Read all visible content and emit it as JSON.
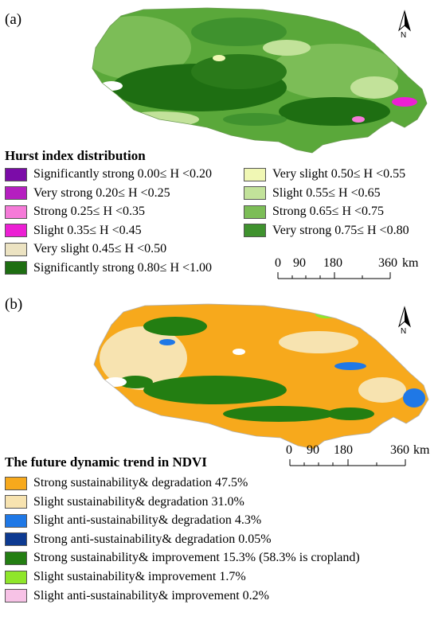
{
  "panel_a": {
    "label": "(a)",
    "north": "N",
    "legend_title": "Hurst index distribution",
    "legend_left": [
      {
        "label": "Significantly strong 0.00≤ H <0.20",
        "color": "#7b0ca8"
      },
      {
        "label": "Very strong 0.20≤ H <0.25",
        "color": "#b51fc0"
      },
      {
        "label": "Strong 0.25≤ H <0.35",
        "color": "#f57ad8"
      },
      {
        "label": "Slight 0.35≤ H <0.45",
        "color": "#ec1fd4"
      },
      {
        "label": "Very slight 0.45≤ H <0.50",
        "color": "#ece3c2"
      },
      {
        "label": "Significantly strong 0.80≤ H <1.00",
        "color": "#1e6e12"
      }
    ],
    "legend_right": [
      {
        "label": "Very slight 0.50≤ H <0.55",
        "color": "#f0f7b4"
      },
      {
        "label": "Slight 0.55≤ H <0.65",
        "color": "#c2e29a"
      },
      {
        "label": "Strong 0.65≤ H <0.75",
        "color": "#7cbd57"
      },
      {
        "label": "Very strong 0.75≤ H <0.80",
        "color": "#3f922e"
      }
    ],
    "scale_ticks": [
      "0",
      "90",
      "180",
      "360"
    ],
    "scale_unit": "km"
  },
  "panel_b": {
    "label": "(b)",
    "north": "N",
    "legend_title": "The future dynamic trend in NDVI",
    "legend": [
      {
        "label": "Strong sustainability& degradation 47.5%",
        "color": "#f7a91c"
      },
      {
        "label": "Slight sustainability& degradation 31.0%",
        "color": "#f7e3b0"
      },
      {
        "label": "Slight anti-sustainability& degradation 4.3%",
        "color": "#1f78e6"
      },
      {
        "label": "Strong anti-sustainability& degradation 0.05%",
        "color": "#0d3a91"
      },
      {
        "label": "Strong sustainability& improvement 15.3% (58.3% is cropland)",
        "color": "#237e12"
      },
      {
        "label": "Slight sustainability& improvement 1.7%",
        "color": "#8fe62a"
      },
      {
        "label": "Slight anti-sustainability& improvement 0.2%",
        "color": "#f7c2e6"
      }
    ],
    "scale_ticks": [
      "0",
      "90",
      "180",
      "360"
    ],
    "scale_unit": "km"
  },
  "colors": {
    "map_a_base": "#5aa83a",
    "map_a_dark": "#1e6e12",
    "map_a_light": "#c2e29a",
    "map_b_base": "#f7a91c",
    "map_b_green": "#237e12",
    "map_b_pale": "#f7e3b0",
    "map_b_blue": "#1f78e6"
  }
}
